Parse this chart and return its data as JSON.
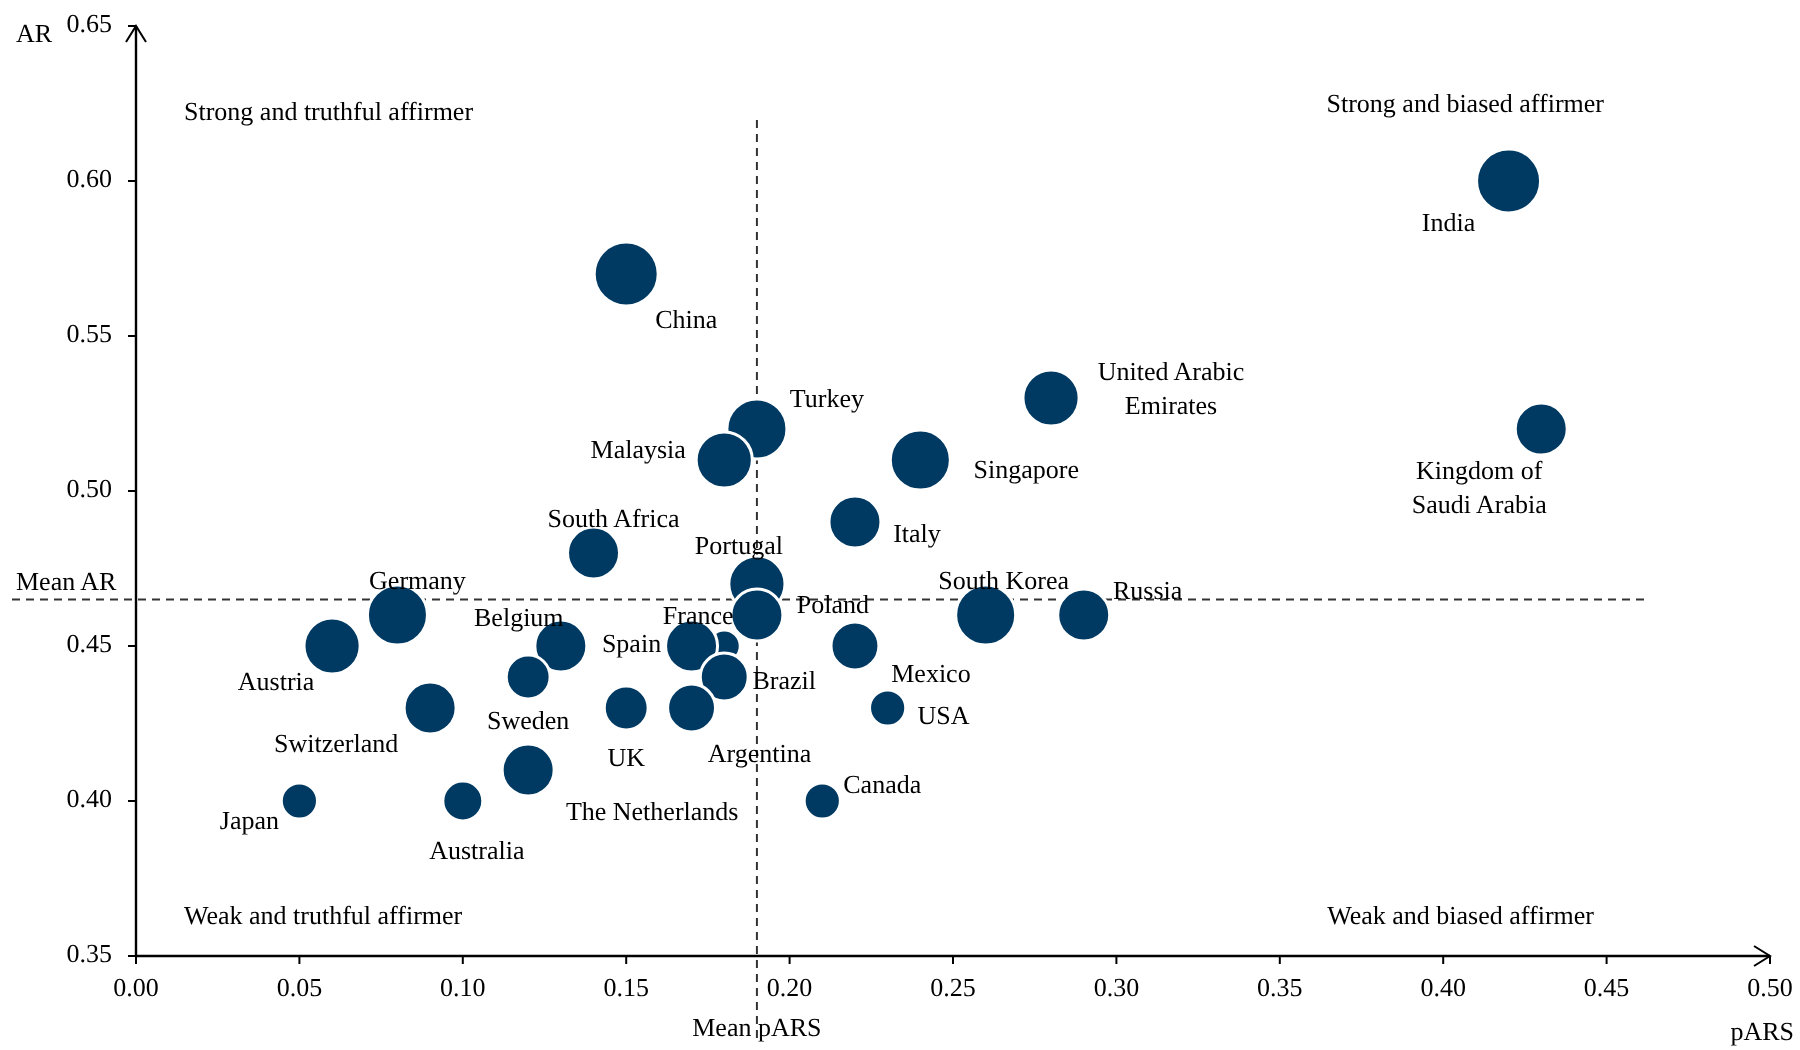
{
  "chart_data": {
    "type": "bubble",
    "xlabel": "pARS",
    "ylabel": "AR",
    "color": "#003a63",
    "x": [
      0.18,
      0.42,
      0.43,
      0.15,
      0.28,
      0.19,
      0.18,
      0.24,
      0.22,
      0.14,
      0.19,
      0.19,
      0.17,
      0.18,
      0.08,
      0.13,
      0.06,
      0.09,
      0.12,
      0.15,
      0.17,
      0.22,
      0.23,
      0.26,
      0.29,
      0.05,
      0.1,
      0.12,
      0.21
    ],
    "values": [
      0.45,
      0.6,
      0.52,
      0.57,
      0.53,
      0.52,
      0.51,
      0.51,
      0.49,
      0.48,
      0.47,
      0.46,
      0.45,
      0.44,
      0.46,
      0.45,
      0.45,
      0.43,
      0.44,
      0.43,
      0.43,
      0.45,
      0.43,
      0.46,
      0.46,
      0.4,
      0.4,
      0.41,
      0.4
    ],
    "sizes": [
      0.25,
      1,
      0.66,
      1,
      0.77,
      0.88,
      0.77,
      0.88,
      0.66,
      0.66,
      0.77,
      0.66,
      0.66,
      0.56,
      0.88,
      0.66,
      0.77,
      0.66,
      0.47,
      0.47,
      0.56,
      0.56,
      0.32,
      0.88,
      0.66,
      0.32,
      0.39,
      0.66,
      0.32
    ],
    "xlim": [
      0,
      0.5
    ],
    "ylim": [
      0.35,
      0.65
    ],
    "xticks": [
      {
        "value": 0,
        "label": "0.00"
      },
      {
        "value": 0.05,
        "label": "0.05"
      },
      {
        "value": 0.1,
        "label": "0.10"
      },
      {
        "value": 0.15,
        "label": "0.15"
      },
      {
        "value": 0.2,
        "label": "0.20"
      },
      {
        "value": 0.25,
        "label": "0.25"
      },
      {
        "value": 0.3,
        "label": "0.30"
      },
      {
        "value": 0.35,
        "label": "0.35"
      },
      {
        "value": 0.4,
        "label": "0.40"
      },
      {
        "value": 0.45,
        "label": "0.45"
      },
      {
        "value": 0.5,
        "label": "0.50"
      }
    ],
    "yticks": [
      0.35,
      {
        "value": 0.4,
        "label": "0.40"
      },
      0.45,
      {
        "value": 0.5,
        "label": "0.50"
      },
      0.55,
      {
        "value": 0.6,
        "label": "0.60"
      },
      0.65
    ],
    "grid": false,
    "ref_lines": [
      {
        "axis": "x",
        "value": 0.19,
        "label": "Mean pARS",
        "line_style": "dashed"
      },
      {
        "axis": "y",
        "value": 0.465,
        "label": "Mean AR",
        "line_style": "dashed"
      }
    ],
    "annotations": [
      {
        "text": "France",
        "x": 0.18,
        "y": 0.45
      },
      {
        "text": "India",
        "x": 0.42,
        "y": 0.6
      },
      {
        "text": "Kingdom of Saudi Arabia",
        "x": 0.43,
        "y": 0.52
      },
      {
        "text": "China",
        "x": 0.15,
        "y": 0.57
      },
      {
        "text": "United Arabic Emirates",
        "x": 0.28,
        "y": 0.53
      },
      {
        "text": "Turkey",
        "x": 0.19,
        "y": 0.52
      },
      {
        "text": "Malaysia",
        "x": 0.18,
        "y": 0.51
      },
      {
        "text": "Singapore",
        "x": 0.24,
        "y": 0.51
      },
      {
        "text": "Italy",
        "x": 0.22,
        "y": 0.49
      },
      {
        "text": "South Africa",
        "x": 0.14,
        "y": 0.48
      },
      {
        "text": "Portugal",
        "x": 0.19,
        "y": 0.47
      },
      {
        "text": "Poland",
        "x": 0.19,
        "y": 0.46
      },
      {
        "text": "Spain",
        "x": 0.17,
        "y": 0.45
      },
      {
        "text": "Brazil",
        "x": 0.18,
        "y": 0.44
      },
      {
        "text": "Germany",
        "x": 0.08,
        "y": 0.46
      },
      {
        "text": "Belgium",
        "x": 0.13,
        "y": 0.45
      },
      {
        "text": "Austria",
        "x": 0.06,
        "y": 0.45
      },
      {
        "text": "Switzerland",
        "x": 0.09,
        "y": 0.43
      },
      {
        "text": "Sweden",
        "x": 0.12,
        "y": 0.44
      },
      {
        "text": "UK",
        "x": 0.15,
        "y": 0.43
      },
      {
        "text": "Argentina",
        "x": 0.17,
        "y": 0.43
      },
      {
        "text": "Mexico",
        "x": 0.22,
        "y": 0.45
      },
      {
        "text": "USA",
        "x": 0.23,
        "y": 0.43
      },
      {
        "text": "South Korea",
        "x": 0.26,
        "y": 0.46
      },
      {
        "text": "Russia",
        "x": 0.29,
        "y": 0.46
      },
      {
        "text": "Japan",
        "x": 0.05,
        "y": 0.4
      },
      {
        "text": "Australia",
        "x": 0.1,
        "y": 0.4
      },
      {
        "text": "The Netherlands",
        "x": 0.12,
        "y": 0.41
      },
      {
        "text": "Canada",
        "x": 0.21,
        "y": 0.4
      },
      "Strong and truthful affirmer",
      "Strong and biased affirmer",
      "Weak and truthful affirmer",
      "Weak and biased affirmer"
    ]
  }
}
